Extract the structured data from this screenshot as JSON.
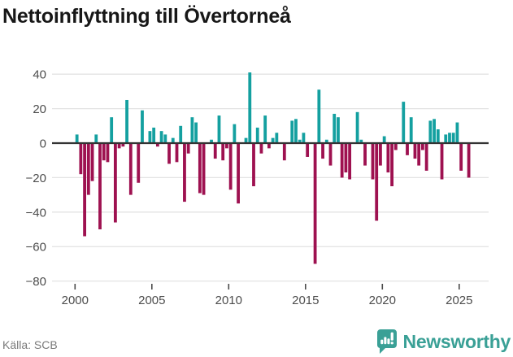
{
  "header": {
    "title": "Nettoinflyttning till Övertorneå"
  },
  "chart_data": {
    "type": "bar",
    "title": "Nettoinflyttning till Övertorneå",
    "xlabel": "",
    "ylabel": "",
    "start_year": 2000,
    "start_quarter": 1,
    "frequency": "quarterly",
    "values": [
      5,
      -18,
      -54,
      -30,
      -22,
      5,
      -50,
      -10,
      -11,
      15,
      -46,
      -3,
      -2,
      25,
      -30,
      0,
      -23,
      19,
      0,
      7,
      9,
      -2,
      7,
      5,
      -12,
      3,
      -11,
      10,
      -34,
      -6,
      15,
      12,
      -29,
      -30,
      0,
      2,
      -9,
      16,
      -10,
      -3,
      -27,
      11,
      -35,
      0,
      3,
      41,
      -25,
      9,
      -6,
      16,
      -3,
      3,
      6,
      0,
      -10,
      0,
      13,
      14,
      2,
      6,
      -8,
      0,
      -70,
      31,
      -9,
      2,
      -13,
      17,
      15,
      -20,
      -17,
      -21,
      0,
      18,
      2,
      -13,
      0,
      -21,
      -45,
      -13,
      4,
      -17,
      -25,
      -4,
      0,
      24,
      -7,
      15,
      -9,
      -13,
      -4,
      -16,
      13,
      14,
      8,
      -21,
      5,
      6,
      6,
      12,
      -16,
      0,
      -20
    ],
    "y_ticks": [
      {
        "value": 40,
        "label": "40"
      },
      {
        "value": 20,
        "label": "20"
      },
      {
        "value": 0,
        "label": "0"
      },
      {
        "value": -20,
        "label": "−20"
      },
      {
        "value": -40,
        "label": "−40"
      },
      {
        "value": -60,
        "label": "−60"
      },
      {
        "value": -80,
        "label": "−80"
      }
    ],
    "x_ticks": [
      {
        "year": 2000,
        "label": "2000"
      },
      {
        "year": 2005,
        "label": "2005"
      },
      {
        "year": 2010,
        "label": "2010"
      },
      {
        "year": 2015,
        "label": "2015"
      },
      {
        "year": 2020,
        "label": "2020"
      },
      {
        "year": 2025,
        "label": "2025"
      }
    ],
    "ylim": [
      -80,
      44
    ],
    "grid": "horizontal",
    "legend": "none",
    "colors": {
      "positive": "#14a0a0",
      "negative": "#9e1150",
      "zero_line": "#333333",
      "grid": "#e3e3e3",
      "tick_label": "#4d4d4d",
      "tick_mark": "#4a4a4a"
    }
  },
  "footer": {
    "source": "Källa: SCB",
    "brand": "Newsworthy",
    "brand_color": "#3aa096",
    "logo_icon": "bar-chart-exclamation-bubble-icon"
  }
}
